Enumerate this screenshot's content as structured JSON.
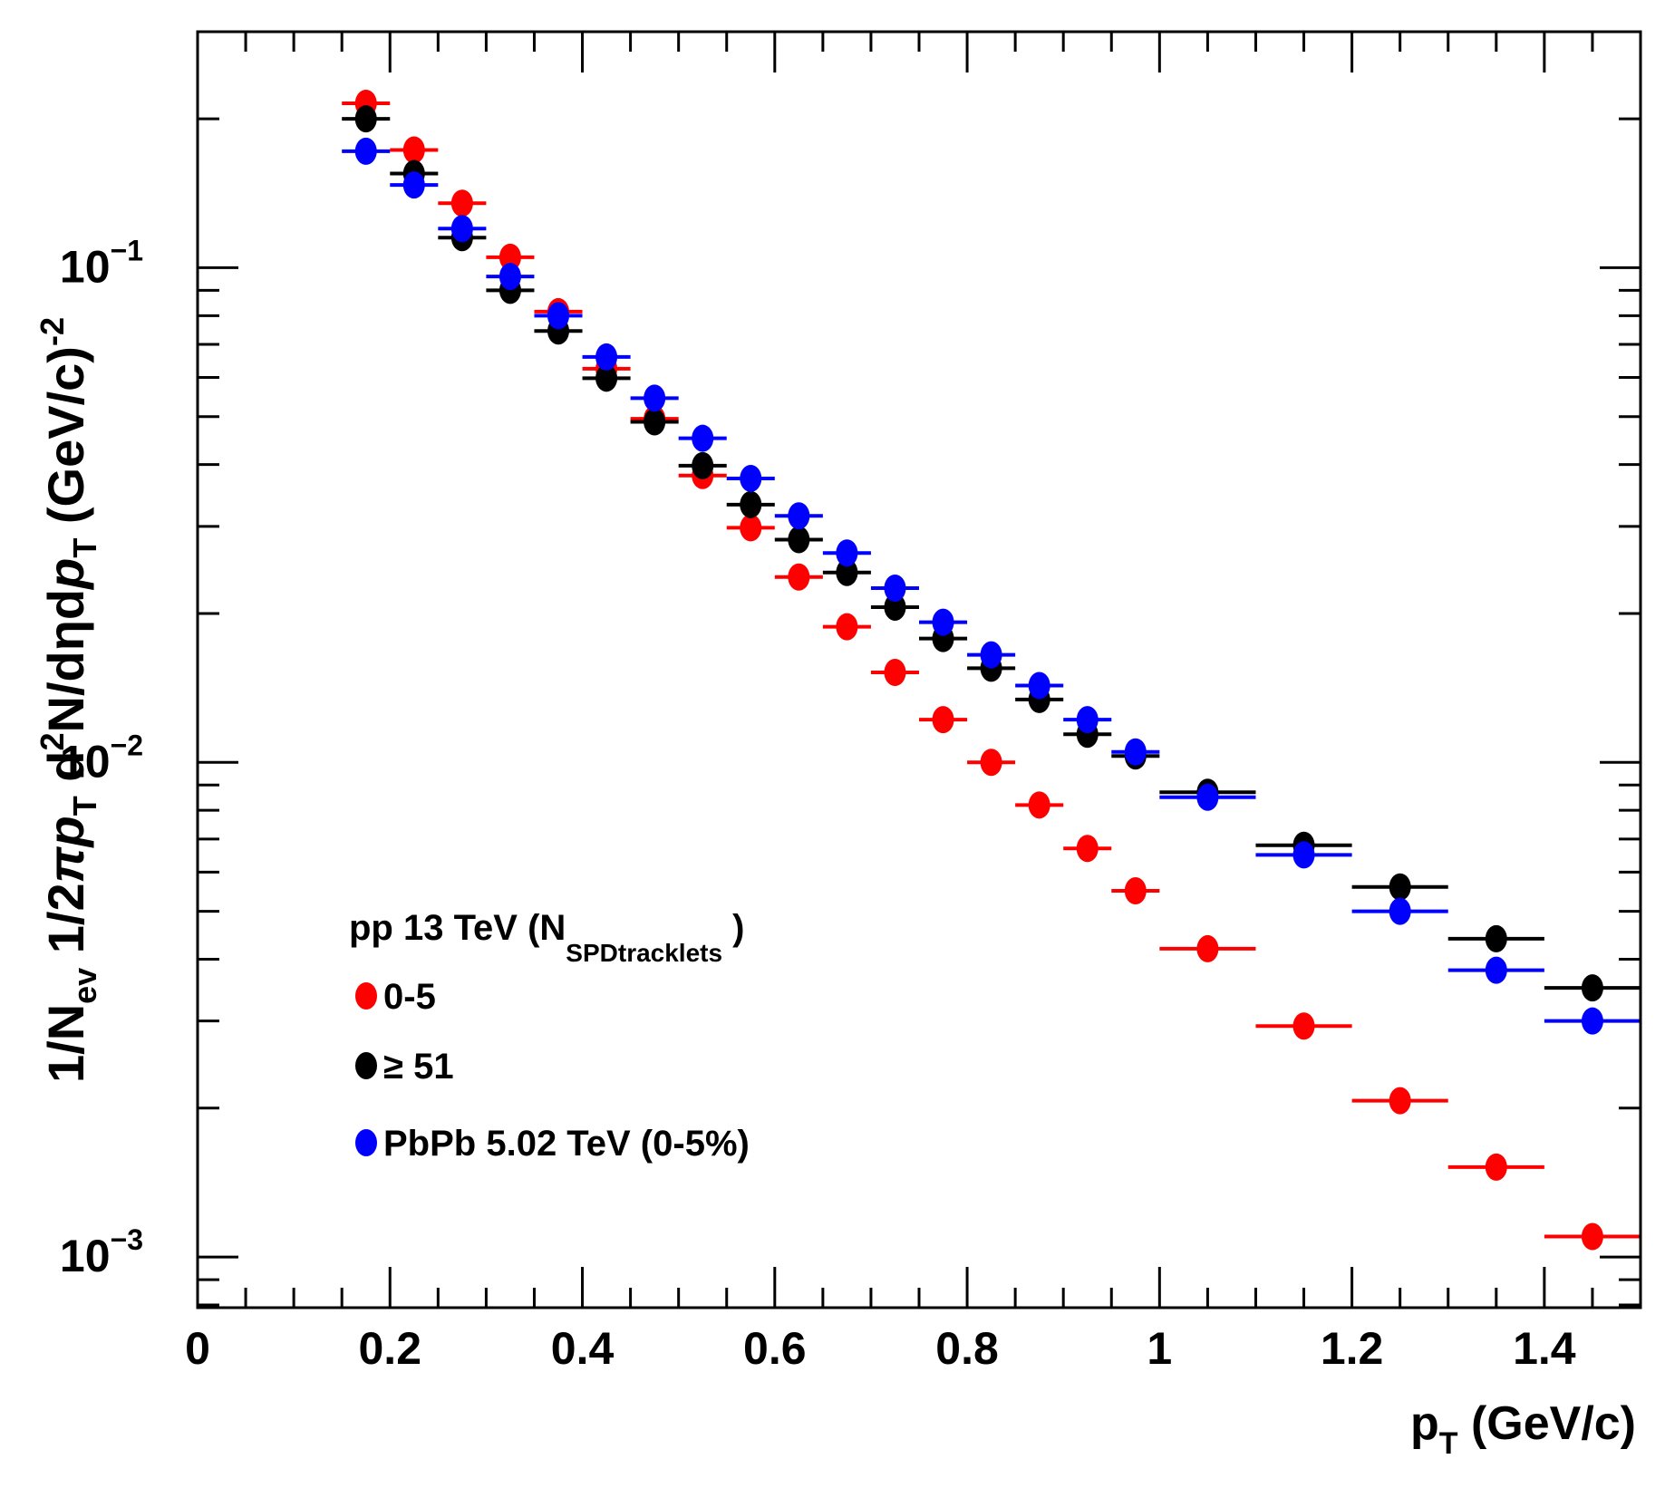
{
  "chart_data": {
    "type": "scatter",
    "xlabel_main": "p",
    "xlabel_sub": "T",
    "xlabel_rest": " (GeV/c)",
    "ylabel": {
      "p1": "1/N",
      "p1_sub": "ev",
      "p2": " 1/2",
      "p2_pi": "π",
      "p2_p": "p",
      "p2_sub": "T",
      "p3": " d",
      "p3_sup": "2",
      "p3_rest": "N/dηd",
      "p4_p": "p",
      "p4_sub": "T",
      "p5": " (GeV/c)",
      "p5_sup": "-2"
    },
    "xlim": [
      0,
      1.5
    ],
    "ylim": [
      0.00079,
      0.3
    ],
    "log_y": true,
    "x_ticks": [
      "0",
      "0.2",
      "0.4",
      "0.6",
      "0.8",
      "1",
      "1.2",
      "1.4"
    ],
    "y_ticks": [
      {
        "value": 0.1,
        "base": "10",
        "exp": "−1"
      },
      {
        "value": 0.01,
        "base": "10",
        "exp": "−2"
      },
      {
        "value": 0.001,
        "base": "10",
        "exp": "−3"
      }
    ],
    "legend": {
      "title": "pp 13 TeV (N",
      "title_sub": "SPDtracklets",
      "title_end": " )",
      "placement": "lower-left"
    },
    "series": [
      {
        "name": "0-5",
        "color": "#ff0000",
        "points": [
          {
            "x": 0.175,
            "y": 0.215,
            "xerr": 0.025
          },
          {
            "x": 0.225,
            "y": 0.173,
            "xerr": 0.025
          },
          {
            "x": 0.275,
            "y": 0.135,
            "xerr": 0.025
          },
          {
            "x": 0.325,
            "y": 0.105,
            "xerr": 0.025
          },
          {
            "x": 0.375,
            "y": 0.0815,
            "xerr": 0.025
          },
          {
            "x": 0.425,
            "y": 0.0625,
            "xerr": 0.025
          },
          {
            "x": 0.475,
            "y": 0.0495,
            "xerr": 0.025
          },
          {
            "x": 0.525,
            "y": 0.038,
            "xerr": 0.025
          },
          {
            "x": 0.575,
            "y": 0.0298,
            "xerr": 0.025
          },
          {
            "x": 0.625,
            "y": 0.0237,
            "xerr": 0.025
          },
          {
            "x": 0.675,
            "y": 0.0188,
            "xerr": 0.025
          },
          {
            "x": 0.725,
            "y": 0.0152,
            "xerr": 0.025
          },
          {
            "x": 0.775,
            "y": 0.0122,
            "xerr": 0.025
          },
          {
            "x": 0.825,
            "y": 0.01,
            "xerr": 0.025
          },
          {
            "x": 0.875,
            "y": 0.0082,
            "xerr": 0.025
          },
          {
            "x": 0.925,
            "y": 0.0067,
            "xerr": 0.025
          },
          {
            "x": 0.975,
            "y": 0.0055,
            "xerr": 0.025
          },
          {
            "x": 1.05,
            "y": 0.0042,
            "xerr": 0.05
          },
          {
            "x": 1.15,
            "y": 0.00293,
            "xerr": 0.05
          },
          {
            "x": 1.25,
            "y": 0.00207,
            "xerr": 0.05
          },
          {
            "x": 1.35,
            "y": 0.00152,
            "xerr": 0.05
          },
          {
            "x": 1.45,
            "y": 0.0011,
            "xerr": 0.05
          }
        ]
      },
      {
        "name": "≥ 51",
        "color": "#000000",
        "points": [
          {
            "x": 0.175,
            "y": 0.2,
            "xerr": 0.025
          },
          {
            "x": 0.225,
            "y": 0.155,
            "xerr": 0.025
          },
          {
            "x": 0.275,
            "y": 0.115,
            "xerr": 0.025
          },
          {
            "x": 0.325,
            "y": 0.09,
            "xerr": 0.025
          },
          {
            "x": 0.375,
            "y": 0.0745,
            "xerr": 0.025
          },
          {
            "x": 0.425,
            "y": 0.0598,
            "xerr": 0.025
          },
          {
            "x": 0.475,
            "y": 0.0488,
            "xerr": 0.025
          },
          {
            "x": 0.525,
            "y": 0.0398,
            "xerr": 0.025
          },
          {
            "x": 0.575,
            "y": 0.0332,
            "xerr": 0.025
          },
          {
            "x": 0.625,
            "y": 0.0282,
            "xerr": 0.025
          },
          {
            "x": 0.675,
            "y": 0.0242,
            "xerr": 0.025
          },
          {
            "x": 0.725,
            "y": 0.0206,
            "xerr": 0.025
          },
          {
            "x": 0.775,
            "y": 0.0178,
            "xerr": 0.025
          },
          {
            "x": 0.825,
            "y": 0.0155,
            "xerr": 0.025
          },
          {
            "x": 0.875,
            "y": 0.0134,
            "xerr": 0.025
          },
          {
            "x": 0.925,
            "y": 0.0114,
            "xerr": 0.025
          },
          {
            "x": 0.975,
            "y": 0.0103,
            "xerr": 0.025
          },
          {
            "x": 1.05,
            "y": 0.0087,
            "xerr": 0.05
          },
          {
            "x": 1.15,
            "y": 0.0068,
            "xerr": 0.05
          },
          {
            "x": 1.25,
            "y": 0.0056,
            "xerr": 0.05
          },
          {
            "x": 1.35,
            "y": 0.0044,
            "xerr": 0.05
          },
          {
            "x": 1.45,
            "y": 0.0035,
            "xerr": 0.05
          }
        ]
      },
      {
        "name": "PbPb 5.02 TeV (0-5%)",
        "color": "#0000ff",
        "points": [
          {
            "x": 0.175,
            "y": 0.172,
            "xerr": 0.025
          },
          {
            "x": 0.225,
            "y": 0.147,
            "xerr": 0.025
          },
          {
            "x": 0.275,
            "y": 0.12,
            "xerr": 0.025
          },
          {
            "x": 0.325,
            "y": 0.096,
            "xerr": 0.025
          },
          {
            "x": 0.375,
            "y": 0.08,
            "xerr": 0.025
          },
          {
            "x": 0.425,
            "y": 0.066,
            "xerr": 0.025
          },
          {
            "x": 0.475,
            "y": 0.0545,
            "xerr": 0.025
          },
          {
            "x": 0.525,
            "y": 0.0452,
            "xerr": 0.025
          },
          {
            "x": 0.575,
            "y": 0.0375,
            "xerr": 0.025
          },
          {
            "x": 0.625,
            "y": 0.0315,
            "xerr": 0.025
          },
          {
            "x": 0.675,
            "y": 0.0265,
            "xerr": 0.025
          },
          {
            "x": 0.725,
            "y": 0.0225,
            "xerr": 0.025
          },
          {
            "x": 0.775,
            "y": 0.0192,
            "xerr": 0.025
          },
          {
            "x": 0.825,
            "y": 0.0165,
            "xerr": 0.025
          },
          {
            "x": 0.875,
            "y": 0.0143,
            "xerr": 0.025
          },
          {
            "x": 0.925,
            "y": 0.0122,
            "xerr": 0.025
          },
          {
            "x": 0.975,
            "y": 0.0105,
            "xerr": 0.025
          },
          {
            "x": 1.05,
            "y": 0.0085,
            "xerr": 0.05
          },
          {
            "x": 1.15,
            "y": 0.0065,
            "xerr": 0.05
          },
          {
            "x": 1.25,
            "y": 0.005,
            "xerr": 0.05
          },
          {
            "x": 1.35,
            "y": 0.0038,
            "xerr": 0.05
          },
          {
            "x": 1.45,
            "y": 0.003,
            "xerr": 0.05
          }
        ]
      }
    ]
  }
}
